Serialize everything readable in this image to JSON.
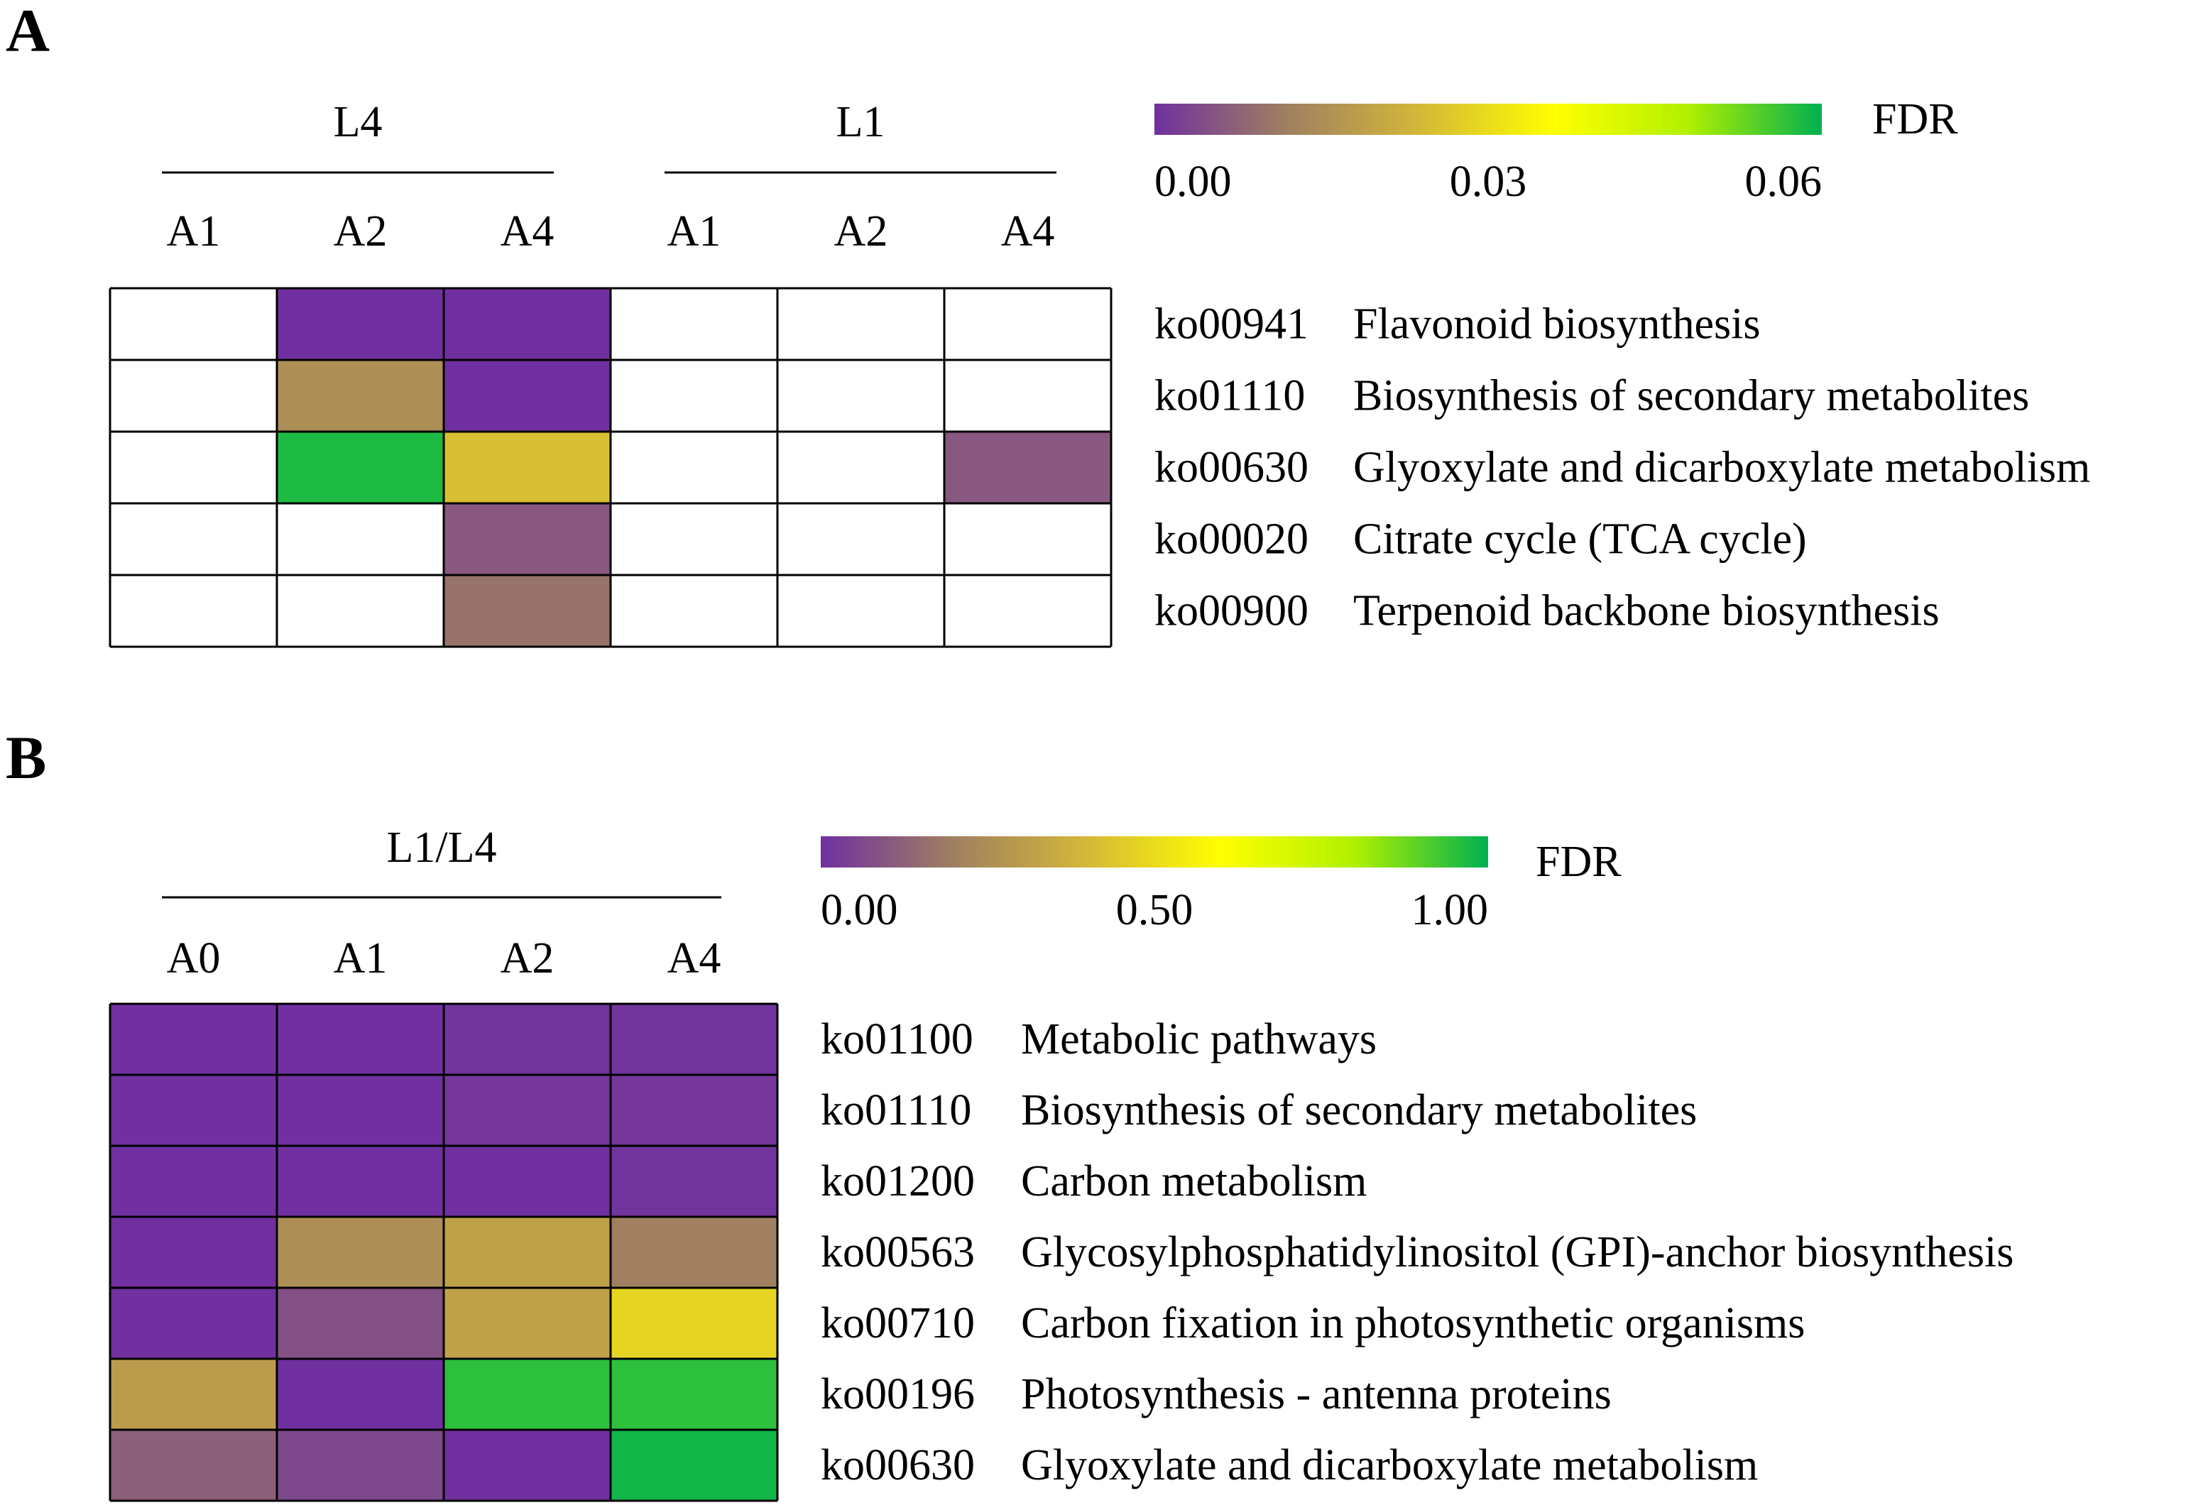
{
  "chart_data": [
    {
      "type": "heatmap",
      "panel": "A",
      "group_labels": [
        "L4",
        "L1"
      ],
      "columns": [
        "A1",
        "A2",
        "A4",
        "A1",
        "A2",
        "A4"
      ],
      "column_groups": [
        0,
        0,
        0,
        1,
        1,
        1
      ],
      "rows": [
        {
          "id": "ko00941",
          "name": "Flavonoid biosynthesis"
        },
        {
          "id": "ko01110",
          "name": "Biosynthesis of secondary metabolites"
        },
        {
          "id": "ko00630",
          "name": "Glyoxylate and dicarboxylate metabolism"
        },
        {
          "id": "ko00020",
          "name": "Citrate cycle (TCA cycle)"
        },
        {
          "id": "ko00900",
          "name": "Terpenoid backbone biosynthesis"
        }
      ],
      "values": [
        [
          null,
          0.0,
          0.0,
          null,
          null,
          null
        ],
        [
          null,
          0.015,
          0.0,
          null,
          null,
          null
        ],
        [
          null,
          0.058,
          0.025,
          null,
          null,
          0.006
        ],
        [
          null,
          null,
          0.006,
          null,
          null,
          null
        ],
        [
          null,
          null,
          0.01,
          null,
          null,
          null
        ]
      ],
      "colorbar": {
        "label": "FDR",
        "min": 0,
        "max": 0.06,
        "ticks": [
          "0.00",
          "0.03",
          "0.06"
        ],
        "stops": [
          "#7030a0",
          "#a08060",
          "#d4b838",
          "#ffff00",
          "#b0f000",
          "#00b050"
        ]
      }
    },
    {
      "type": "heatmap",
      "panel": "B",
      "group_labels": [
        "L1/L4"
      ],
      "columns": [
        "A0",
        "A1",
        "A2",
        "A4"
      ],
      "column_groups": [
        0,
        0,
        0,
        0
      ],
      "rows": [
        {
          "id": "ko01100",
          "name": "Metabolic pathways"
        },
        {
          "id": "ko01110",
          "name": "Biosynthesis of secondary metabolites"
        },
        {
          "id": "ko01200",
          "name": "Carbon metabolism"
        },
        {
          "id": "ko00563",
          "name": "Glycosylphosphatidylinositol (GPI)-anchor biosynthesis"
        },
        {
          "id": "ko00710",
          "name": "Carbon fixation in photosynthetic organisms"
        },
        {
          "id": "ko00196",
          "name": "Photosynthesis - antenna proteins"
        },
        {
          "id": "ko00630",
          "name": "Glyoxylate and dicarboxylate metabolism"
        }
      ],
      "values": [
        [
          0.0,
          0.0,
          0.01,
          0.01
        ],
        [
          0.0,
          0.0,
          0.02,
          0.02
        ],
        [
          0.0,
          0.0,
          0.0,
          0.01
        ],
        [
          0.0,
          0.25,
          0.32,
          0.2
        ],
        [
          0.0,
          0.08,
          0.32,
          0.48
        ],
        [
          0.3,
          0.0,
          0.95,
          0.95
        ],
        [
          0.12,
          0.06,
          0.0,
          0.98
        ]
      ],
      "colorbar": {
        "label": "FDR",
        "min": 0,
        "max": 1.0,
        "ticks": [
          "0.00",
          "0.50",
          "1.00"
        ],
        "stops": [
          "#7030a0",
          "#a08060",
          "#d4b838",
          "#ffff00",
          "#b0f000",
          "#00b050"
        ]
      }
    }
  ],
  "panels": {
    "a": {
      "letter": "A"
    },
    "b": {
      "letter": "B"
    }
  }
}
